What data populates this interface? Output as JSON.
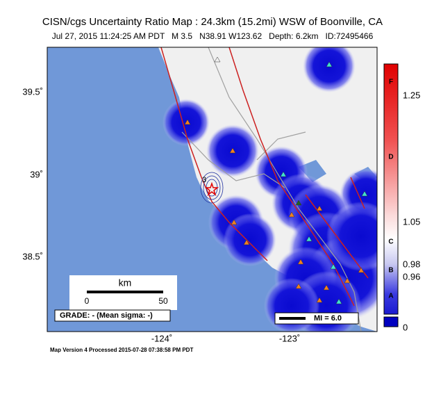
{
  "header": {
    "title": "CISN/cgs Uncertainty Ratio Map : 24.3km (15.2mi) WSW of Boonville, CA",
    "subtitle": "Jul 27, 2015 11:24:25 AM PDT   M 3.5   N38.91 W123.62   Depth: 6.2km   ID:72495466"
  },
  "map": {
    "lat_labels": [
      "39.5˚",
      "39˚",
      "38.5˚"
    ],
    "lon_labels": [
      "-124˚",
      "-123˚"
    ],
    "contour_label": "3",
    "scale_bar": {
      "unit": "km",
      "start": "0",
      "end": "50"
    },
    "grade": "GRADE: - (Mean sigma: -)",
    "mi_legend": "MI = 6.0"
  },
  "colorbar": {
    "labels": [
      "1.25",
      "1.05",
      "0.98",
      "0.96",
      "0"
    ],
    "grades": [
      "F",
      "D",
      "C",
      "B",
      "A"
    ]
  },
  "footer": "Map Version 4 Processed 2015-07-28 07:38:58 PM PDT"
}
